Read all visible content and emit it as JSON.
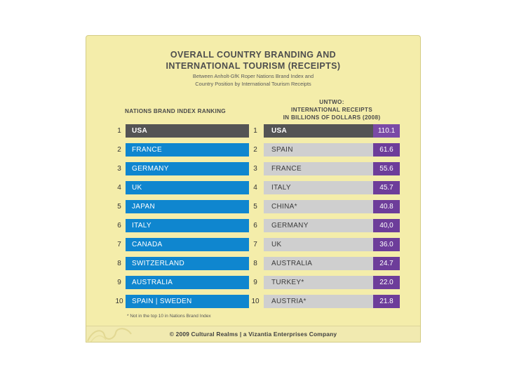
{
  "page": {
    "title_line1": "OVERALL COUNTRY BRANDING AND",
    "title_line2": "INTERNATIONAL TOURISM (RECEIPTS)",
    "subtitle_line1": "Between Anholt-GfK Roper Nations Brand Index and",
    "subtitle_line2": "Country Position by International Tourism Receipts",
    "left_header": "NATIONS BRAND INDEX RANKING",
    "right_header_line1": "UNTWO:",
    "right_header_line2": "INTERNATIONAL RECEIPTS",
    "right_header_line3": "IN BILLIONS OF DOLLARS (2008)",
    "footnote": "*   Not in the top 10 in Nations Brand Index",
    "copyright": "© 2009 Cultural Realms | a Vizantia Enterprises Company"
  },
  "colors": {
    "left_bar": "#0f86cf",
    "first_row_bar": "#545454",
    "right_bar": "#cfcfcf",
    "value_box": "#6d3d9a",
    "background": "#f4edaa"
  },
  "chart_data": {
    "type": "table",
    "nations_brand_index_ranking": [
      {
        "rank": "1",
        "country": "USA"
      },
      {
        "rank": "2",
        "country": "FRANCE"
      },
      {
        "rank": "3",
        "country": "GERMANY"
      },
      {
        "rank": "4",
        "country": "UK"
      },
      {
        "rank": "5",
        "country": "JAPAN"
      },
      {
        "rank": "6",
        "country": "ITALY"
      },
      {
        "rank": "7",
        "country": "CANADA"
      },
      {
        "rank": "8",
        "country": "SWITZERLAND"
      },
      {
        "rank": "9",
        "country": "AUSTRALIA"
      },
      {
        "rank": "10",
        "country": "SPAIN | SWEDEN"
      }
    ],
    "international_receipts": [
      {
        "rank": "1",
        "country": "USA",
        "value": "110.1"
      },
      {
        "rank": "2",
        "country": "SPAIN",
        "value": "61.6"
      },
      {
        "rank": "3",
        "country": "FRANCE",
        "value": "55.6"
      },
      {
        "rank": "4",
        "country": "ITALY",
        "value": "45.7"
      },
      {
        "rank": "5",
        "country": "CHINA*",
        "value": "40.8"
      },
      {
        "rank": "6",
        "country": "GERMANY",
        "value": "40,0"
      },
      {
        "rank": "7",
        "country": "UK",
        "value": "36.0"
      },
      {
        "rank": "8",
        "country": "AUSTRALIA",
        "value": "24.7"
      },
      {
        "rank": "9",
        "country": "TURKEY*",
        "value": "22.0"
      },
      {
        "rank": "10",
        "country": "AUSTRIA*",
        "value": "21.8"
      }
    ]
  }
}
